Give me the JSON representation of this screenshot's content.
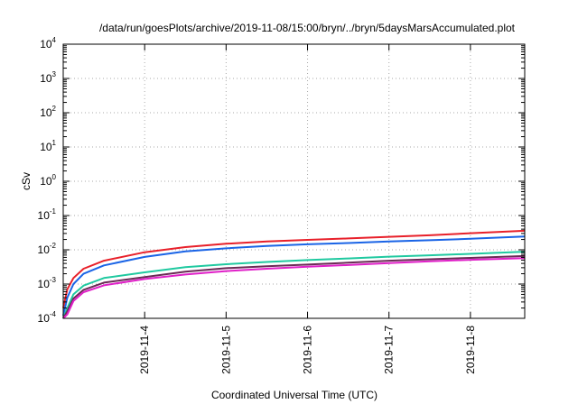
{
  "chart_data": {
    "type": "line",
    "title": "/data/run/goesPlots/archive/2019-11-08/15:00/bryn/../bryn/5daysMarsAccumulated.plot",
    "xlabel": "Coordinated Universal Time (UTC)",
    "ylabel": "cSv",
    "yscale": "log",
    "ylim": [
      0.0001,
      10000
    ],
    "xlim": [
      "2019-11-03T00:00",
      "2019-11-08T16:00"
    ],
    "grid": true,
    "y_ticks": [
      {
        "base": "10",
        "exp": "-4",
        "value": 0.0001
      },
      {
        "base": "10",
        "exp": "-3",
        "value": 0.001
      },
      {
        "base": "10",
        "exp": "-2",
        "value": 0.01
      },
      {
        "base": "10",
        "exp": "-1",
        "value": 0.1
      },
      {
        "base": "10",
        "exp": "0",
        "value": 1
      },
      {
        "base": "10",
        "exp": "1",
        "value": 10
      },
      {
        "base": "10",
        "exp": "2",
        "value": 100
      },
      {
        "base": "10",
        "exp": "3",
        "value": 1000
      },
      {
        "base": "10",
        "exp": "4",
        "value": 10000
      }
    ],
    "x_ticks": [
      {
        "label": "2019-11-4",
        "value": "2019-11-04T00:00"
      },
      {
        "label": "2019-11-5",
        "value": "2019-11-05T00:00"
      },
      {
        "label": "2019-11-6",
        "value": "2019-11-06T00:00"
      },
      {
        "label": "2019-11-7",
        "value": "2019-11-07T00:00"
      },
      {
        "label": "2019-11-8",
        "value": "2019-11-08T00:00"
      }
    ],
    "series": [
      {
        "color": "#e8202a",
        "x": [
          "2019-11-03T00:00",
          "2019-11-03T01:12",
          "2019-11-03T03:00",
          "2019-11-03T06:00",
          "2019-11-03T12:00",
          "2019-11-04T00:00",
          "2019-11-04T12:00",
          "2019-11-05T00:00",
          "2019-11-05T12:00",
          "2019-11-06T00:00",
          "2019-11-06T12:00",
          "2019-11-07T00:00",
          "2019-11-07T12:00",
          "2019-11-08T00:00",
          "2019-11-08T16:00"
        ],
        "values": [
          0.0002,
          0.0007,
          0.0015,
          0.0028,
          0.0048,
          0.0085,
          0.012,
          0.015,
          0.0175,
          0.0195,
          0.0215,
          0.024,
          0.0265,
          0.0305,
          0.036
        ]
      },
      {
        "color": "#1a64e6",
        "x": [
          "2019-11-03T00:00",
          "2019-11-03T01:12",
          "2019-11-03T03:00",
          "2019-11-03T06:00",
          "2019-11-03T12:00",
          "2019-11-04T00:00",
          "2019-11-04T12:00",
          "2019-11-05T00:00",
          "2019-11-05T12:00",
          "2019-11-06T00:00",
          "2019-11-06T12:00",
          "2019-11-07T00:00",
          "2019-11-07T12:00",
          "2019-11-08T00:00",
          "2019-11-08T16:00"
        ],
        "values": [
          0.00012,
          0.0004,
          0.001,
          0.002,
          0.0035,
          0.0062,
          0.009,
          0.011,
          0.013,
          0.0145,
          0.0158,
          0.0175,
          0.019,
          0.021,
          0.0245
        ]
      },
      {
        "color": "#20c9a0",
        "x": [
          "2019-11-03T00:00",
          "2019-11-03T01:12",
          "2019-11-03T03:00",
          "2019-11-03T06:00",
          "2019-11-03T12:00",
          "2019-11-04T00:00",
          "2019-11-04T12:00",
          "2019-11-05T00:00",
          "2019-11-05T12:00",
          "2019-11-06T00:00",
          "2019-11-06T12:00",
          "2019-11-07T00:00",
          "2019-11-07T12:00",
          "2019-11-08T00:00",
          "2019-11-08T16:00"
        ],
        "values": [
          0.0001,
          0.0002,
          0.0005,
          0.0009,
          0.0015,
          0.0022,
          0.0031,
          0.0038,
          0.0044,
          0.005,
          0.0056,
          0.0063,
          0.0069,
          0.0076,
          0.0088
        ]
      },
      {
        "color": "#6a2a55",
        "x": [
          "2019-11-03T00:00",
          "2019-11-03T01:12",
          "2019-11-03T03:00",
          "2019-11-03T06:00",
          "2019-11-03T12:00",
          "2019-11-04T00:00",
          "2019-11-04T12:00",
          "2019-11-05T00:00",
          "2019-11-05T12:00",
          "2019-11-06T00:00",
          "2019-11-06T12:00",
          "2019-11-07T00:00",
          "2019-11-07T12:00",
          "2019-11-08T00:00",
          "2019-11-08T16:00"
        ],
        "values": [
          0.0001,
          0.00016,
          0.00038,
          0.00068,
          0.0011,
          0.0016,
          0.0023,
          0.0029,
          0.0033,
          0.0037,
          0.0042,
          0.0048,
          0.0053,
          0.0058,
          0.0066
        ]
      },
      {
        "color": "#e020c8",
        "x": [
          "2019-11-03T00:00",
          "2019-11-03T01:12",
          "2019-11-03T03:00",
          "2019-11-03T06:00",
          "2019-11-03T12:00",
          "2019-11-04T00:00",
          "2019-11-04T12:00",
          "2019-11-05T00:00",
          "2019-11-05T12:00",
          "2019-11-06T00:00",
          "2019-11-06T12:00",
          "2019-11-07T00:00",
          "2019-11-07T12:00",
          "2019-11-08T00:00",
          "2019-11-08T16:00"
        ],
        "values": [
          0.0001,
          0.00013,
          0.00032,
          0.00058,
          0.00092,
          0.0014,
          0.0019,
          0.0024,
          0.0028,
          0.0032,
          0.0036,
          0.0041,
          0.0046,
          0.0051,
          0.0057
        ]
      }
    ]
  }
}
